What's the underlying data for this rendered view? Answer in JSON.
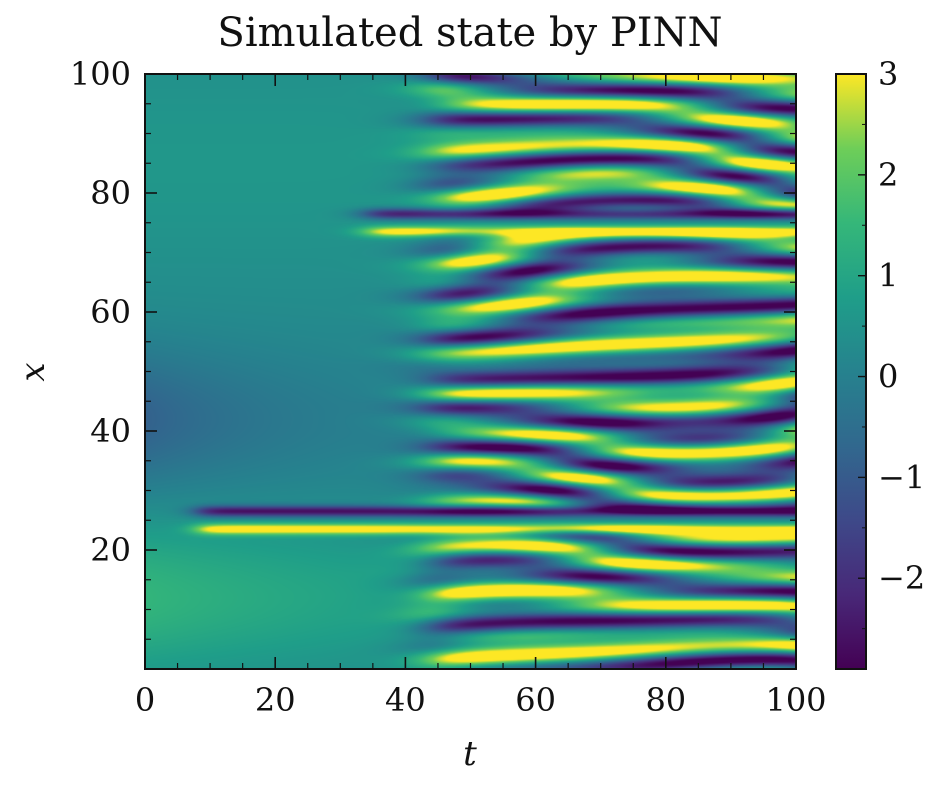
{
  "chart_data": {
    "type": "heatmap",
    "title": "Simulated state by PINN",
    "xlabel": "t",
    "ylabel": "x",
    "xlim": [
      0,
      100
    ],
    "ylim": [
      0,
      100
    ],
    "x_ticks": [
      0,
      20,
      40,
      60,
      80,
      100
    ],
    "y_ticks": [
      20,
      40,
      60,
      80,
      100
    ],
    "colorbar": {
      "colormap": "viridis",
      "range": [
        -2.9,
        3.0
      ],
      "ticks": [
        3,
        2,
        1,
        0,
        -1,
        -2
      ],
      "tick_labels": [
        "3",
        "2",
        "1",
        "0",
        "−1",
        "−2"
      ]
    },
    "grid": false,
    "description_of_field": {
      "smooth_region_t_max": 38,
      "persistent_bands_x": [
        23.5,
        26.5,
        73.5,
        76.5
      ],
      "band_amplitude": 3
    },
    "colors": {
      "viridis_dark": "#440154",
      "viridis_mid": "#21918c",
      "viridis_light": "#fde725",
      "axis": "#111111"
    }
  }
}
